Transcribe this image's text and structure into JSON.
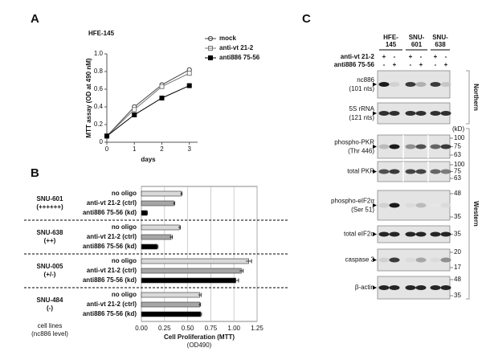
{
  "panel_labels": [
    "A",
    "B",
    "C"
  ],
  "chart_data": [
    {
      "type": "line",
      "title": "HFE-145",
      "y_label": "MTT assay (OD at 490 nM)",
      "x_label": "days",
      "x": [
        0,
        1,
        2,
        3
      ],
      "xlim": [
        0,
        3.3
      ],
      "xticks": [
        0,
        1,
        2,
        3
      ],
      "ylim": [
        0,
        1
      ],
      "yticks": [
        0,
        0.2,
        0.4,
        0.6,
        0.8,
        {
          "value": 1,
          "label": "1.0"
        }
      ],
      "series": [
        {
          "name": "mock",
          "color": "#444444",
          "marker": "open-circle",
          "values": [
            0.07,
            0.4,
            0.65,
            0.82
          ]
        },
        {
          "name": "anti-vt 21-2",
          "color": "#777777",
          "marker": "open-square",
          "values": [
            0.07,
            0.37,
            0.63,
            0.78
          ]
        },
        {
          "name": "anti886 75-56",
          "color": "#000000",
          "marker": "filled-square",
          "values": [
            0.07,
            0.31,
            0.5,
            0.64
          ]
        }
      ]
    },
    {
      "type": "hbar",
      "x_label": "Cell Proliferation (MTT)",
      "x_sublabel": "(OD490)",
      "group_axis_label": [
        "cell lines",
        "(nc886 level)"
      ],
      "xlim": [
        0,
        1.25
      ],
      "xticks": [
        {
          "value": 0,
          "label": "0.00"
        },
        0.25,
        {
          "value": 0.5,
          "label": "0.50"
        },
        0.75,
        {
          "value": 1,
          "label": "1.00"
        },
        1.25
      ],
      "grid": true,
      "colors": [
        "#d9d9d9",
        "#a6a6a6",
        "#000000"
      ],
      "groups": [
        {
          "name": "SNU-601",
          "level": "(++++++)",
          "categories": [
            "no oligo",
            "anti-vt 21-2 (ctrl)",
            "anti886 75-56 (kd)"
          ],
          "values": [
            0.43,
            0.35,
            0.06
          ],
          "errors": [
            0.01,
            0.01,
            0.005
          ]
        },
        {
          "name": "SNU-638",
          "level": "(++)",
          "categories": [
            "no oligo",
            "anti-vt 21-2 (ctrl)",
            "anti886 75-56 (kd)"
          ],
          "values": [
            0.41,
            0.32,
            0.17
          ],
          "errors": [
            0.01,
            0.015,
            0.01
          ]
        },
        {
          "name": "SNU-005",
          "level": "(+/-)",
          "categories": [
            "no oligo",
            "anti-vt 21-2 (ctrl)",
            "anti886 75-56 (kd)"
          ],
          "values": [
            1.16,
            1.08,
            1.02
          ],
          "errors": [
            0.03,
            0.02,
            0.03
          ]
        },
        {
          "name": "SNU-484",
          "level": "(-)",
          "categories": [
            "no oligo",
            "anti-vt 21-2 (ctrl)",
            "anti886 75-56 (kd)"
          ],
          "values": [
            0.63,
            0.63,
            0.64
          ],
          "errors": [
            0.015,
            0.01,
            0.01
          ]
        }
      ]
    }
  ],
  "blot": {
    "cell_lines": [
      [
        "HFE-",
        "145"
      ],
      [
        "SNU-",
        "601"
      ],
      [
        "SNU-",
        "638"
      ]
    ],
    "treatments": [
      {
        "name": "anti-vt 21-2",
        "marks": [
          "+",
          "-",
          "+",
          "-",
          "+",
          "-"
        ]
      },
      {
        "name": "anti886 75-56",
        "marks": [
          "-",
          "+",
          "-",
          "+",
          "-",
          "+"
        ]
      }
    ],
    "kd_label": "(kD)",
    "rows": [
      {
        "label": "nc886",
        "sublabel": "(101 nts)",
        "markers": []
      },
      {
        "label": "5S rRNA",
        "sublabel": "(121 nts)",
        "markers": []
      },
      {
        "label": "phospho-PKR",
        "sublabel": "(Thr 446)",
        "markers": [
          100,
          75,
          63
        ]
      },
      {
        "label": "total PKR",
        "sublabel": null,
        "markers": [
          100,
          75,
          63
        ]
      },
      {
        "label": "phospho-eIF2α",
        "sublabel": "(Ser 51)",
        "markers": [
          48,
          35
        ]
      },
      {
        "label": "total eIF2α",
        "sublabel": null,
        "markers": [
          35
        ]
      },
      {
        "label": "caspase 3",
        "sublabel": null,
        "markers": [
          20,
          17
        ]
      },
      {
        "label": "β-actin",
        "sublabel": null,
        "markers": [
          48,
          35
        ]
      }
    ],
    "methods": [
      "Northern",
      "Western"
    ]
  }
}
